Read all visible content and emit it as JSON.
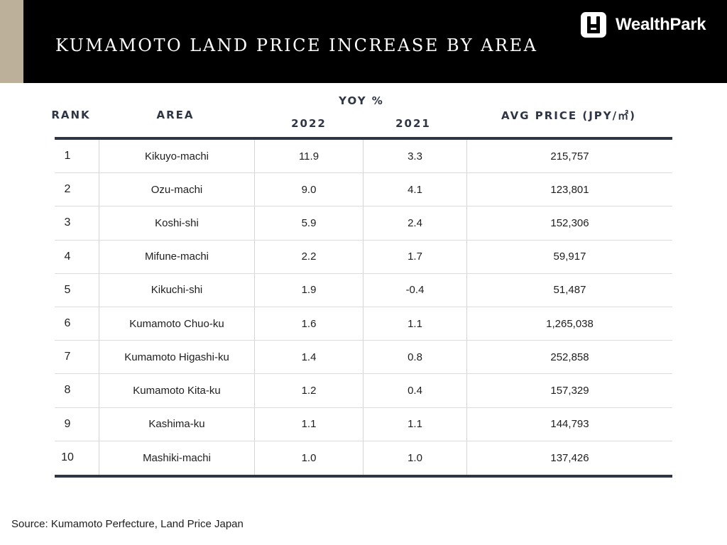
{
  "header": {
    "title": "KUMAMOTO LAND PRICE INCREASE BY AREA",
    "logo_text": "WealthPark",
    "colors": {
      "background": "#000000",
      "accent": "#bdb09a",
      "title": "#ffffff"
    }
  },
  "table": {
    "headers": {
      "rank": "RANK",
      "area": "AREA",
      "yoy": "YOY %",
      "y2022": "2022",
      "y2021": "2021",
      "avg_price": "AVG PRICE (JPY/㎡)"
    },
    "rows": [
      {
        "rank": "1",
        "area": "Kikuyo-machi",
        "y2022": "11.9",
        "y2021": "3.3",
        "avg_price": "215,757"
      },
      {
        "rank": "2",
        "area": "Ozu-machi",
        "y2022": "9.0",
        "y2021": "4.1",
        "avg_price": "123,801"
      },
      {
        "rank": "3",
        "area": "Koshi-shi",
        "y2022": "5.9",
        "y2021": "2.4",
        "avg_price": "152,306"
      },
      {
        "rank": "4",
        "area": "Mifune-machi",
        "y2022": "2.2",
        "y2021": "1.7",
        "avg_price": "59,917"
      },
      {
        "rank": "5",
        "area": "Kikuchi-shi",
        "y2022": "1.9",
        "y2021": "-0.4",
        "avg_price": "51,487"
      },
      {
        "rank": "6",
        "area": "Kumamoto Chuo-ku",
        "y2022": "1.6",
        "y2021": "1.1",
        "avg_price": "1,265,038"
      },
      {
        "rank": "7",
        "area": "Kumamoto Higashi-ku",
        "y2022": "1.4",
        "y2021": "0.8",
        "avg_price": "252,858"
      },
      {
        "rank": "8",
        "area": "Kumamoto Kita-ku",
        "y2022": "1.2",
        "y2021": "0.4",
        "avg_price": "157,329"
      },
      {
        "rank": "9",
        "area": "Kashima-ku",
        "y2022": "1.1",
        "y2021": "1.1",
        "avg_price": "144,793"
      },
      {
        "rank": "10",
        "area": "Mashiki-machi",
        "y2022": "1.0",
        "y2021": "1.0",
        "avg_price": "137,426"
      }
    ]
  },
  "footer": {
    "source": "Source: Kumamoto Perfecture, Land Price Japan"
  }
}
